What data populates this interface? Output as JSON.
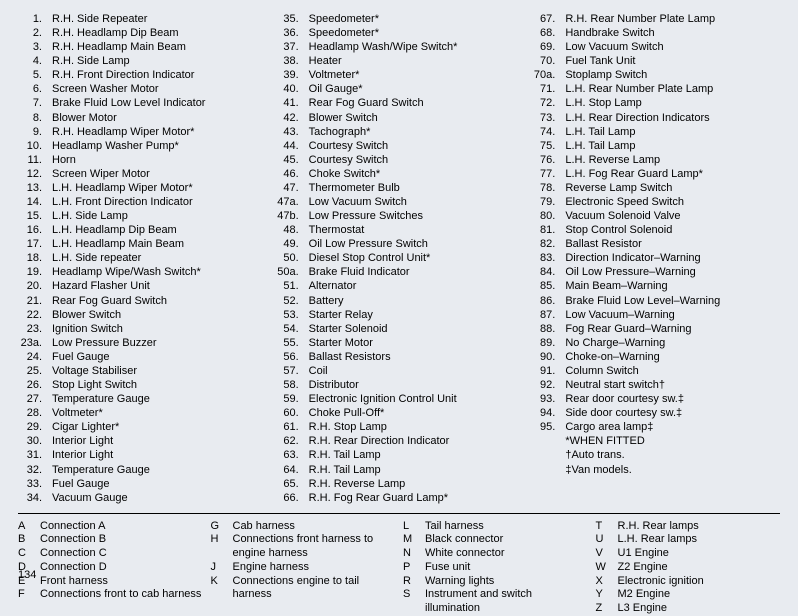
{
  "pageNumber": "134",
  "columns": [
    [
      {
        "n": "1.",
        "t": "R.H. Side Repeater"
      },
      {
        "n": "2.",
        "t": "R.H. Headlamp Dip Beam"
      },
      {
        "n": "3.",
        "t": "R.H. Headlamp Main Beam"
      },
      {
        "n": "4.",
        "t": "R.H. Side Lamp"
      },
      {
        "n": "5.",
        "t": "R.H. Front Direction Indicator"
      },
      {
        "n": "6.",
        "t": "Screen Washer Motor"
      },
      {
        "n": "7.",
        "t": "Brake Fluid Low Level Indicator"
      },
      {
        "n": "8.",
        "t": "Blower Motor"
      },
      {
        "n": "9.",
        "t": "R.H. Headlamp Wiper Motor*"
      },
      {
        "n": "10.",
        "t": "Headlamp Washer Pump*"
      },
      {
        "n": "11.",
        "t": "Horn"
      },
      {
        "n": "12.",
        "t": "Screen Wiper Motor"
      },
      {
        "n": "13.",
        "t": "L.H. Headlamp Wiper Motor*"
      },
      {
        "n": "14.",
        "t": "L.H. Front Direction Indicator"
      },
      {
        "n": "15.",
        "t": "L.H. Side Lamp"
      },
      {
        "n": "16.",
        "t": "L.H. Headlamp Dip Beam"
      },
      {
        "n": "17.",
        "t": "L.H. Headlamp Main Beam"
      },
      {
        "n": "18.",
        "t": "L.H. Side repeater"
      },
      {
        "n": "19.",
        "t": "Headlamp Wipe/Wash Switch*"
      },
      {
        "n": "20.",
        "t": "Hazard Flasher Unit"
      },
      {
        "n": "21.",
        "t": "Rear Fog Guard Switch"
      },
      {
        "n": "22.",
        "t": "Blower Switch"
      },
      {
        "n": "23.",
        "t": "Ignition Switch"
      },
      {
        "n": "23a.",
        "t": "Low Pressure Buzzer"
      },
      {
        "n": "24.",
        "t": "Fuel Gauge"
      },
      {
        "n": "25.",
        "t": "Voltage Stabiliser"
      },
      {
        "n": "26.",
        "t": "Stop Light Switch"
      },
      {
        "n": "27.",
        "t": "Temperature Gauge"
      },
      {
        "n": "28.",
        "t": "Voltmeter*"
      },
      {
        "n": "29.",
        "t": "Cigar Lighter*"
      },
      {
        "n": "30.",
        "t": "Interior Light"
      },
      {
        "n": "31.",
        "t": "Interior Light"
      },
      {
        "n": "32.",
        "t": "Temperature Gauge"
      },
      {
        "n": "33.",
        "t": "Fuel Gauge"
      },
      {
        "n": "34.",
        "t": "Vacuum Gauge"
      }
    ],
    [
      {
        "n": "35.",
        "t": "Speedometer*"
      },
      {
        "n": "36.",
        "t": "Speedometer*"
      },
      {
        "n": "37.",
        "t": "Headlamp Wash/Wipe Switch*"
      },
      {
        "n": "38.",
        "t": "Heater"
      },
      {
        "n": "39.",
        "t": "Voltmeter*"
      },
      {
        "n": "40.",
        "t": "Oil Gauge*"
      },
      {
        "n": "41.",
        "t": "Rear Fog Guard Switch"
      },
      {
        "n": "42.",
        "t": "Blower Switch"
      },
      {
        "n": "43.",
        "t": "Tachograph*"
      },
      {
        "n": "44.",
        "t": "Courtesy Switch"
      },
      {
        "n": "45.",
        "t": "Courtesy Switch"
      },
      {
        "n": "46.",
        "t": "Choke Switch*"
      },
      {
        "n": "47.",
        "t": "Thermometer Bulb"
      },
      {
        "n": "47a.",
        "t": "Low Vacuum Switch"
      },
      {
        "n": "47b.",
        "t": "Low Pressure Switches"
      },
      {
        "n": "48.",
        "t": "Thermostat"
      },
      {
        "n": "49.",
        "t": "Oil Low Pressure Switch"
      },
      {
        "n": "50.",
        "t": "Diesel Stop Control Unit*"
      },
      {
        "n": "50a.",
        "t": "Brake Fluid Indicator"
      },
      {
        "n": "51.",
        "t": "Alternator"
      },
      {
        "n": "52.",
        "t": "Battery"
      },
      {
        "n": "53.",
        "t": "Starter Relay"
      },
      {
        "n": "54.",
        "t": "Starter Solenoid"
      },
      {
        "n": "55.",
        "t": "Starter Motor"
      },
      {
        "n": "56.",
        "t": "Ballast Resistors"
      },
      {
        "n": "57.",
        "t": "Coil"
      },
      {
        "n": "58.",
        "t": "Distributor"
      },
      {
        "n": "59.",
        "t": "Electronic Ignition Control Unit"
      },
      {
        "n": "60.",
        "t": "Choke Pull-Off*"
      },
      {
        "n": "61.",
        "t": "R.H. Stop Lamp"
      },
      {
        "n": "62.",
        "t": "R.H. Rear Direction Indicator"
      },
      {
        "n": "63.",
        "t": "R.H. Tail Lamp"
      },
      {
        "n": "64.",
        "t": "R.H. Tail Lamp"
      },
      {
        "n": "65.",
        "t": "R.H. Reverse Lamp"
      },
      {
        "n": "66.",
        "t": "R.H. Fog Rear Guard Lamp*"
      }
    ],
    [
      {
        "n": "67.",
        "t": "R.H. Rear Number Plate Lamp"
      },
      {
        "n": "68.",
        "t": "Handbrake Switch"
      },
      {
        "n": "69.",
        "t": "Low Vacuum Switch"
      },
      {
        "n": "70.",
        "t": "Fuel Tank Unit"
      },
      {
        "n": "70a.",
        "t": "Stoplamp Switch"
      },
      {
        "n": "71.",
        "t": "L.H. Rear Number Plate Lamp"
      },
      {
        "n": "72.",
        "t": "L.H. Stop Lamp"
      },
      {
        "n": "73.",
        "t": "L.H. Rear Direction Indicators"
      },
      {
        "n": "74.",
        "t": "L.H. Tail Lamp"
      },
      {
        "n": "75.",
        "t": "L.H. Tail Lamp"
      },
      {
        "n": "76.",
        "t": "L.H. Reverse Lamp"
      },
      {
        "n": "77.",
        "t": "L.H. Fog Rear Guard Lamp*"
      },
      {
        "n": "78.",
        "t": "Reverse Lamp Switch"
      },
      {
        "n": "79.",
        "t": "Electronic Speed Switch"
      },
      {
        "n": "80.",
        "t": "Vacuum Solenoid Valve"
      },
      {
        "n": "81.",
        "t": "Stop Control Solenoid"
      },
      {
        "n": "82.",
        "t": "Ballast Resistor"
      },
      {
        "n": "83.",
        "t": "Direction Indicator–Warning"
      },
      {
        "n": "84.",
        "t": "Oil Low Pressure–Warning"
      },
      {
        "n": "85.",
        "t": "Main Beam–Warning"
      },
      {
        "n": "86.",
        "t": "Brake Fluid Low Level–Warning"
      },
      {
        "n": "87.",
        "t": "Low Vacuum–Warning"
      },
      {
        "n": "88.",
        "t": "Fog Rear Guard–Warning"
      },
      {
        "n": "89.",
        "t": "No Charge–Warning"
      },
      {
        "n": "90.",
        "t": "Choke-on–Warning"
      },
      {
        "n": "91.",
        "t": "Column Switch"
      },
      {
        "n": "92.",
        "t": "Neutral start switch†"
      },
      {
        "n": "93.",
        "t": "Rear door courtesy sw.‡"
      },
      {
        "n": "94.",
        "t": "Side door courtesy sw.‡"
      },
      {
        "n": "95.",
        "t": "Cargo area lamp‡"
      },
      {
        "n": "",
        "t": ""
      },
      {
        "n": "",
        "t": "*WHEN FITTED"
      },
      {
        "n": "",
        "t": "†Auto trans."
      },
      {
        "n": "",
        "t": "‡Van models."
      }
    ]
  ],
  "keys": [
    [
      {
        "k": "A",
        "t": "Connection A"
      },
      {
        "k": "B",
        "t": "Connection B"
      },
      {
        "k": "C",
        "t": "Connection C"
      },
      {
        "k": "D",
        "t": "Connection D"
      },
      {
        "k": "E",
        "t": "Front harness"
      },
      {
        "k": "F",
        "t": "Connections front to cab harness"
      }
    ],
    [
      {
        "k": "G",
        "t": "Cab harness"
      },
      {
        "k": "H",
        "t": "Connections front harness to engine harness"
      },
      {
        "k": "J",
        "t": "Engine harness"
      },
      {
        "k": "K",
        "t": "Connections engine to tail harness"
      }
    ],
    [
      {
        "k": "L",
        "t": "Tail harness"
      },
      {
        "k": "M",
        "t": "Black connector"
      },
      {
        "k": "N",
        "t": "White connector"
      },
      {
        "k": "P",
        "t": "Fuse unit"
      },
      {
        "k": "R",
        "t": "Warning lights"
      },
      {
        "k": "S",
        "t": "Instrument and switch illumination"
      }
    ],
    [
      {
        "k": "T",
        "t": "R.H. Rear lamps"
      },
      {
        "k": "U",
        "t": "L.H. Rear lamps"
      },
      {
        "k": "V",
        "t": "U1 Engine"
      },
      {
        "k": "W",
        "t": "Z2 Engine"
      },
      {
        "k": "X",
        "t": "Electronic ignition"
      },
      {
        "k": "Y",
        "t": "M2 Engine"
      },
      {
        "k": "Z",
        "t": "L3 Engine"
      }
    ]
  ]
}
